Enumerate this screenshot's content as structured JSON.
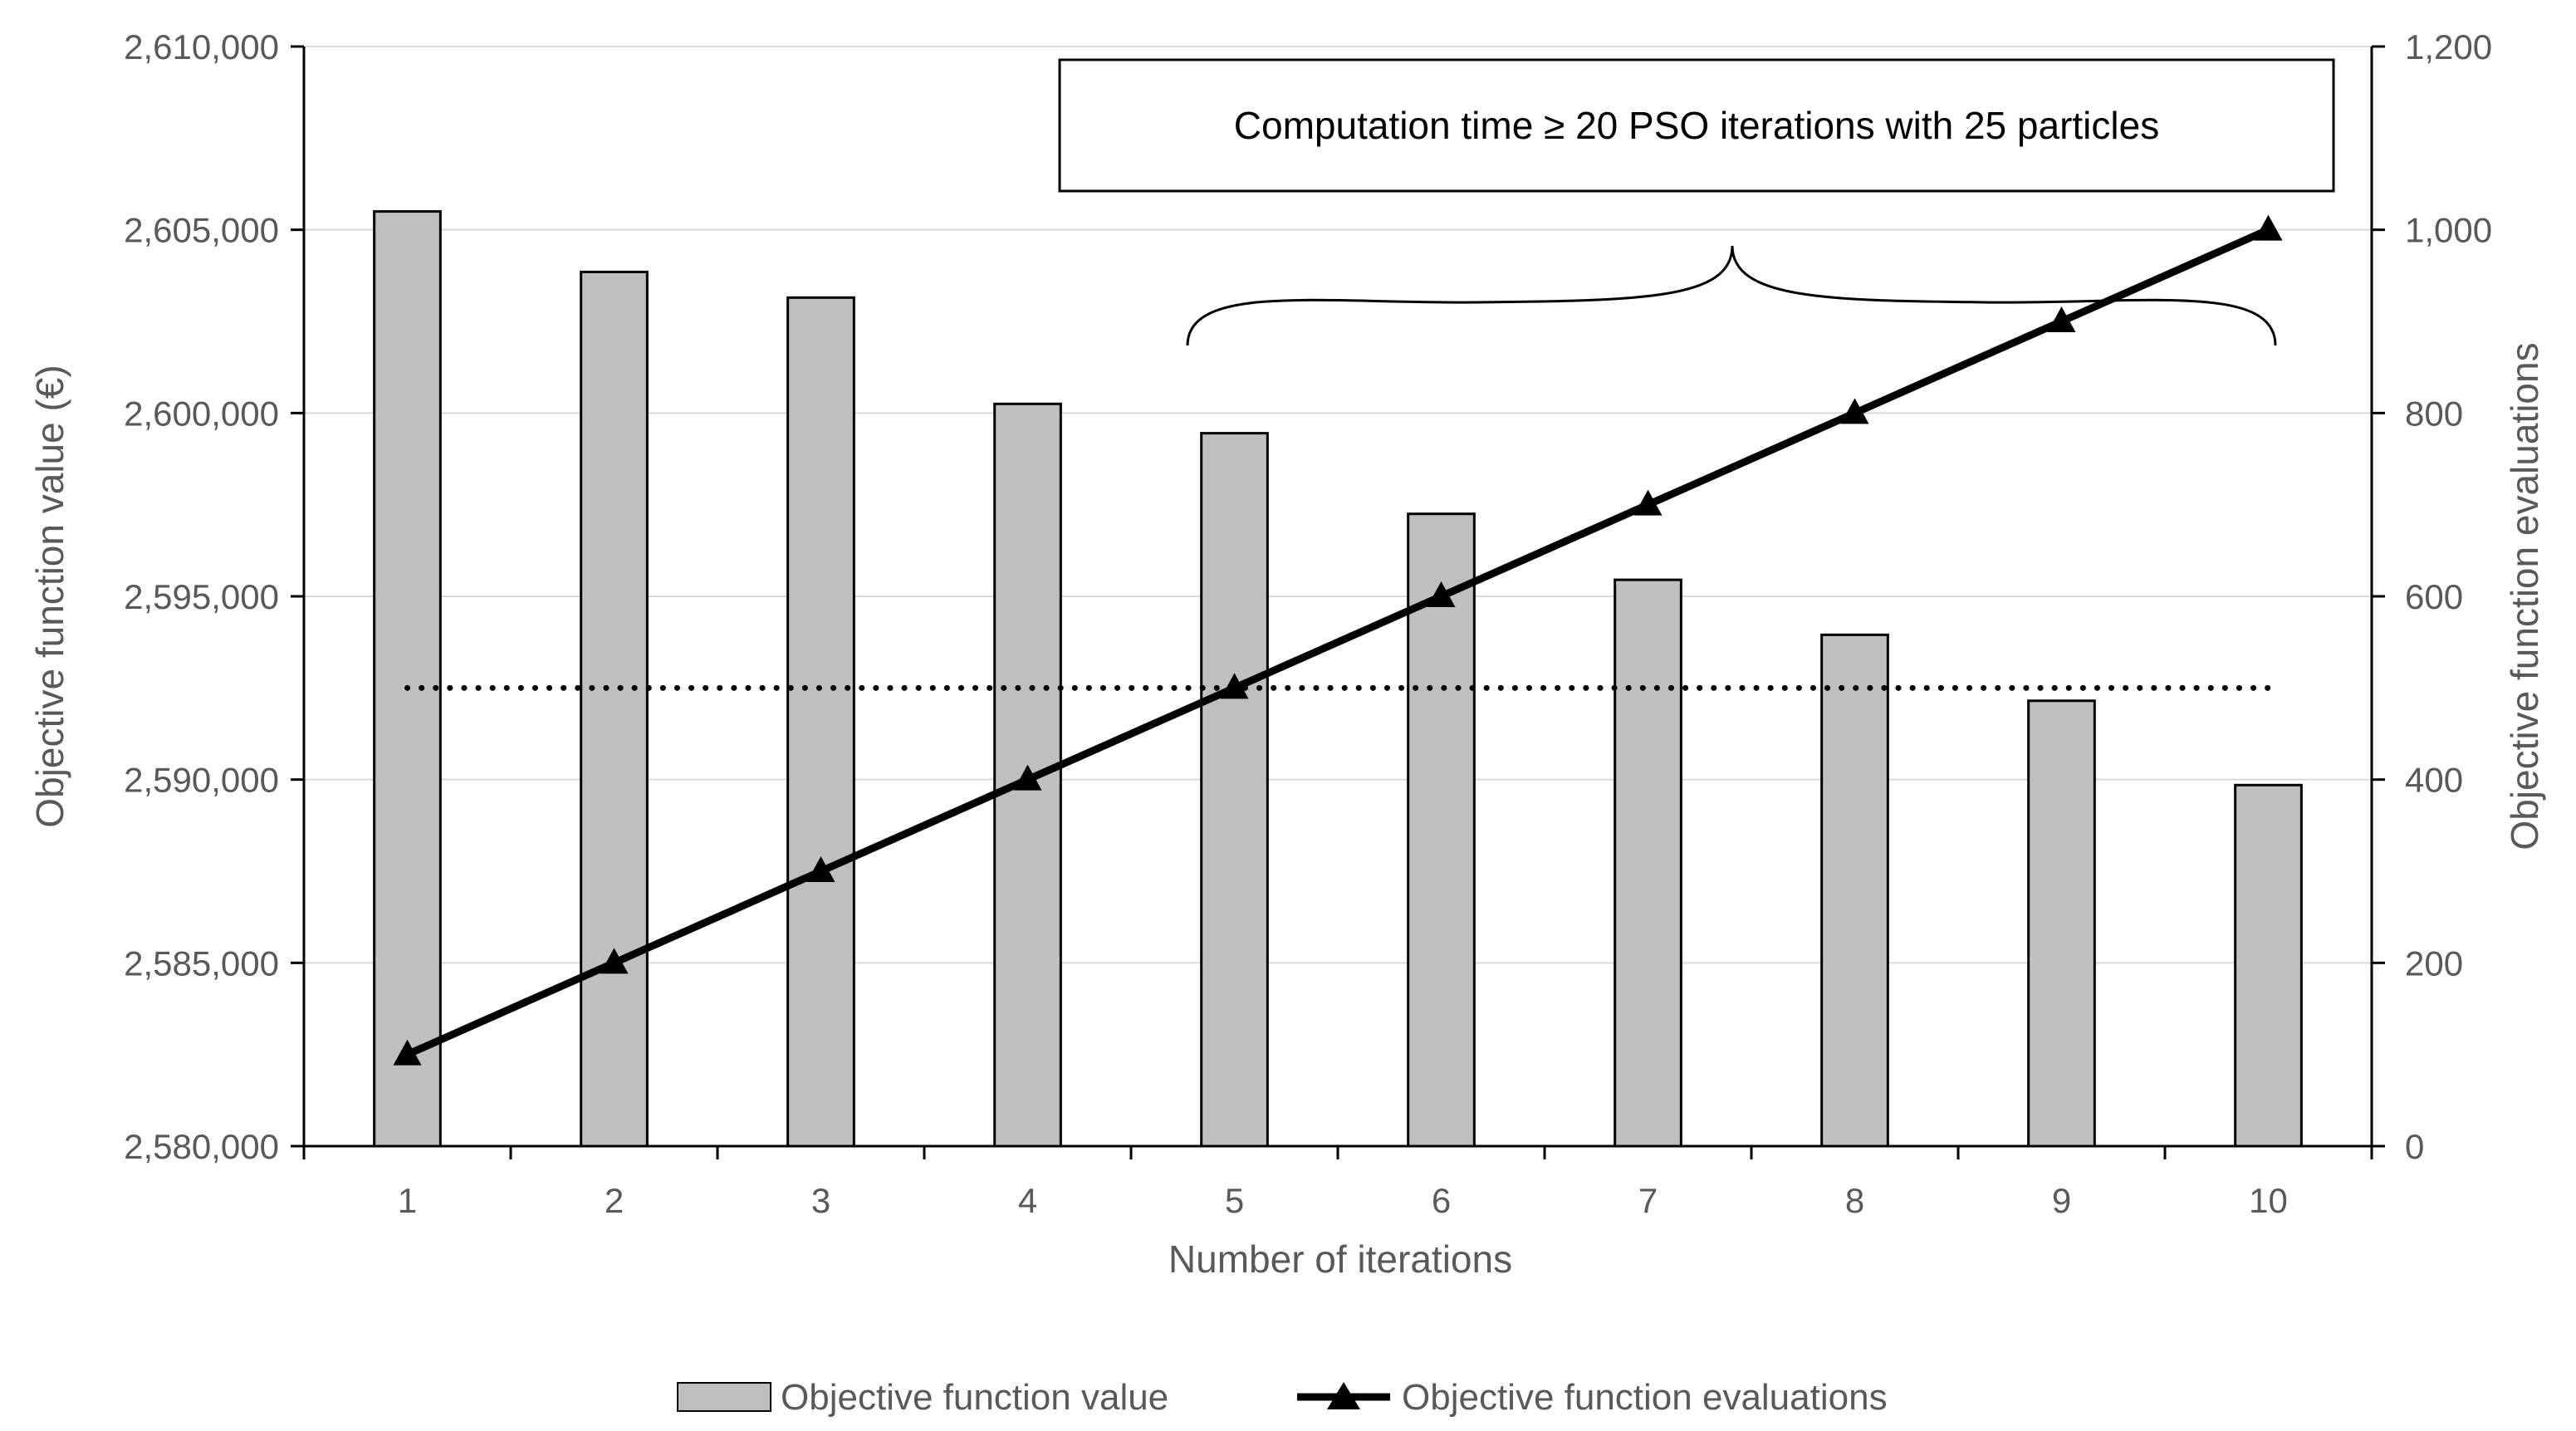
{
  "chart_data": {
    "type": "bar+line",
    "categories": [
      "1",
      "2",
      "3",
      "4",
      "5",
      "6",
      "7",
      "8",
      "9",
      "10"
    ],
    "series": [
      {
        "name": "Objective function value",
        "type": "bar",
        "axis": "left",
        "values": [
          2605500,
          2603850,
          2603150,
          2600250,
          2599450,
          2597250,
          2595450,
          2593950,
          2592150,
          2589850
        ]
      },
      {
        "name": "Objective function evaluations",
        "type": "line",
        "marker": "triangle",
        "axis": "right",
        "values": [
          100,
          200,
          300,
          400,
          500,
          600,
          700,
          800,
          900,
          1000
        ]
      }
    ],
    "reference_line": {
      "style": "dotted",
      "axis": "right",
      "value": 500,
      "from_category": "1",
      "to_category": "10"
    },
    "xlabel": "Number of iterations",
    "ylabel_left": "Objective function value (€)",
    "ylabel_right": "Objective function evaluations",
    "ylim_left": [
      2580000,
      2610000
    ],
    "yticks_left": [
      "2,580,000",
      "2,585,000",
      "2,590,000",
      "2,595,000",
      "2,600,000",
      "2,605,000",
      "2,610,000"
    ],
    "ylim_right": [
      0,
      1200
    ],
    "yticks_right": [
      "0",
      "200",
      "400",
      "600",
      "800",
      "1,000",
      "1,200"
    ],
    "annotation": "Computation time ≥ 20 PSO iterations with 25 particles",
    "brace": {
      "from_category": "5",
      "to_category": "10"
    },
    "grid": true,
    "legend": {
      "position": "bottom",
      "items": [
        "Objective function value",
        "Objective function evaluations"
      ]
    },
    "colors": {
      "bar_fill": "#bfbfbf",
      "bar_stroke": "#000000",
      "line": "#000000",
      "grid": "#d9d9d9",
      "text": "#595959"
    }
  }
}
